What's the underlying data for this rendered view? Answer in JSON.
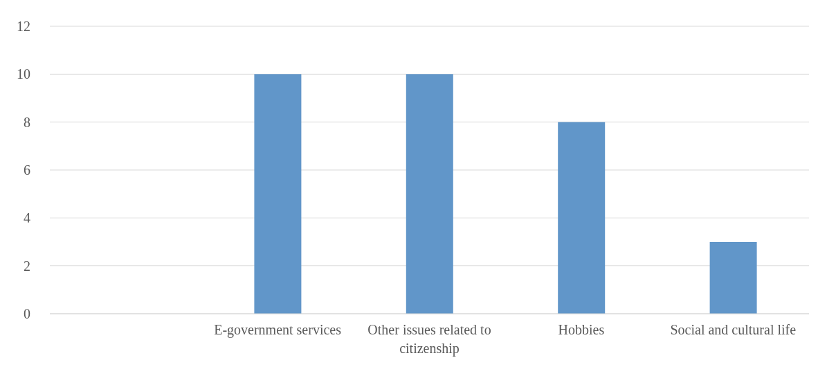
{
  "chart_data": {
    "type": "bar",
    "categories": [
      null,
      "E-government services",
      "Other issues related to citizenship",
      "Hobbies",
      "Social and cultural life"
    ],
    "values": [
      null,
      10,
      10,
      8,
      3
    ],
    "color": "#6196c9",
    "ylim": [
      0,
      12
    ],
    "yticks": [
      0,
      2,
      4,
      6,
      8,
      10,
      12
    ],
    "grid": "y"
  }
}
